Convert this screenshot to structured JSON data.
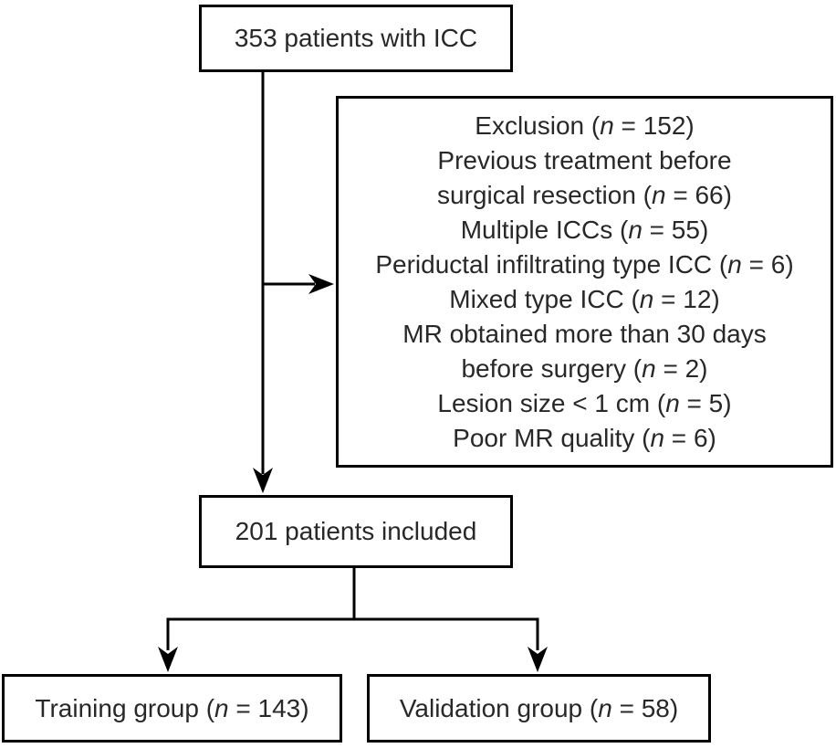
{
  "colors": {
    "line": "#000000",
    "text": "#282828",
    "box_bg": "#ffffff",
    "page_bg": "#ffffff"
  },
  "flowchart": {
    "initial": {
      "label": "353 patients with ICC"
    },
    "exclusion": {
      "lines": [
        "Exclusion (*n* = 152)",
        "Previous treatment before",
        "surgical resection (*n* = 66)",
        "Multiple ICCs (*n* = 55)",
        "Periductal infiltrating type ICC (*n* = 6)",
        "Mixed type ICC (*n* = 12)",
        "MR obtained more than 30 days",
        "before surgery (*n* = 2)",
        "Lesion size < 1 cm (*n* = 5)",
        "Poor MR quality (*n* = 6)"
      ]
    },
    "included": {
      "label": "201 patients included"
    },
    "training": {
      "label": "Training group (*n* = 143)"
    },
    "validation": {
      "label": "Validation group (*n* = 58)"
    }
  }
}
